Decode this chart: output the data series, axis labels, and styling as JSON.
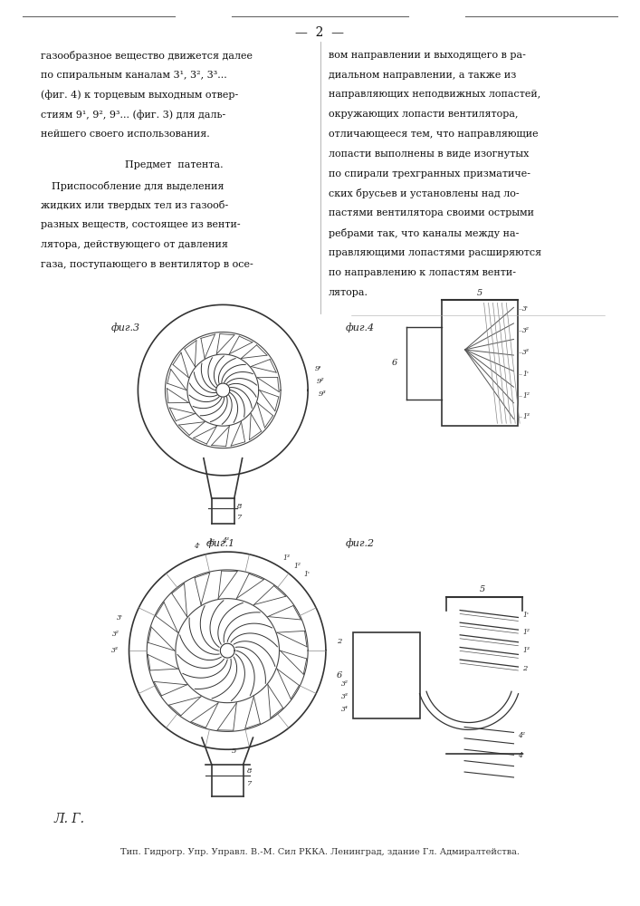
{
  "bg_color": "#ffffff",
  "page_number": "2",
  "text_col1": [
    "газообразное вещество движется далее",
    "по спиральным каналам 3¹, 3², 3³...",
    "(фиг. 4) к торцевым выходным отвер-",
    "стиям 9¹, 9², 9³... (фиг. 3) для даль-",
    "нейшего своего использования."
  ],
  "patent_header": "Предмет  патента.",
  "text_col1_patent": [
    "Приспособление для выделения",
    "жидких или твердых тел из газооб-",
    "разных веществ, состоящее из венти-",
    "лятора, действующего от давления",
    "газа, поступающего в вентилятор в осе-"
  ],
  "text_col2": [
    "вом направлении и выходящего в ра-",
    "диальном направлении, а также из",
    "направляющих неподвижных лопастей,",
    "окружающих лопасти вентилятора,",
    "отличающееся тем, что направляющие",
    "лопасти выполнены в виде изогнутых",
    "по спирали трехгранных призматиче-",
    "ских брусьев и установлены над ло-",
    "пастями вентилятора своими острыми",
    "ребрами так, что каналы между на-",
    "правляющими лопастями расширяются",
    "по направлению к лопастям венти-",
    "лятора."
  ],
  "footer_line1": "Л. Г.",
  "footer_line2": "Тип. Гидрогр. Упр. Управл. В.-М. Сил РККA. Ленинград, здание Гл. Адмиралтейства."
}
